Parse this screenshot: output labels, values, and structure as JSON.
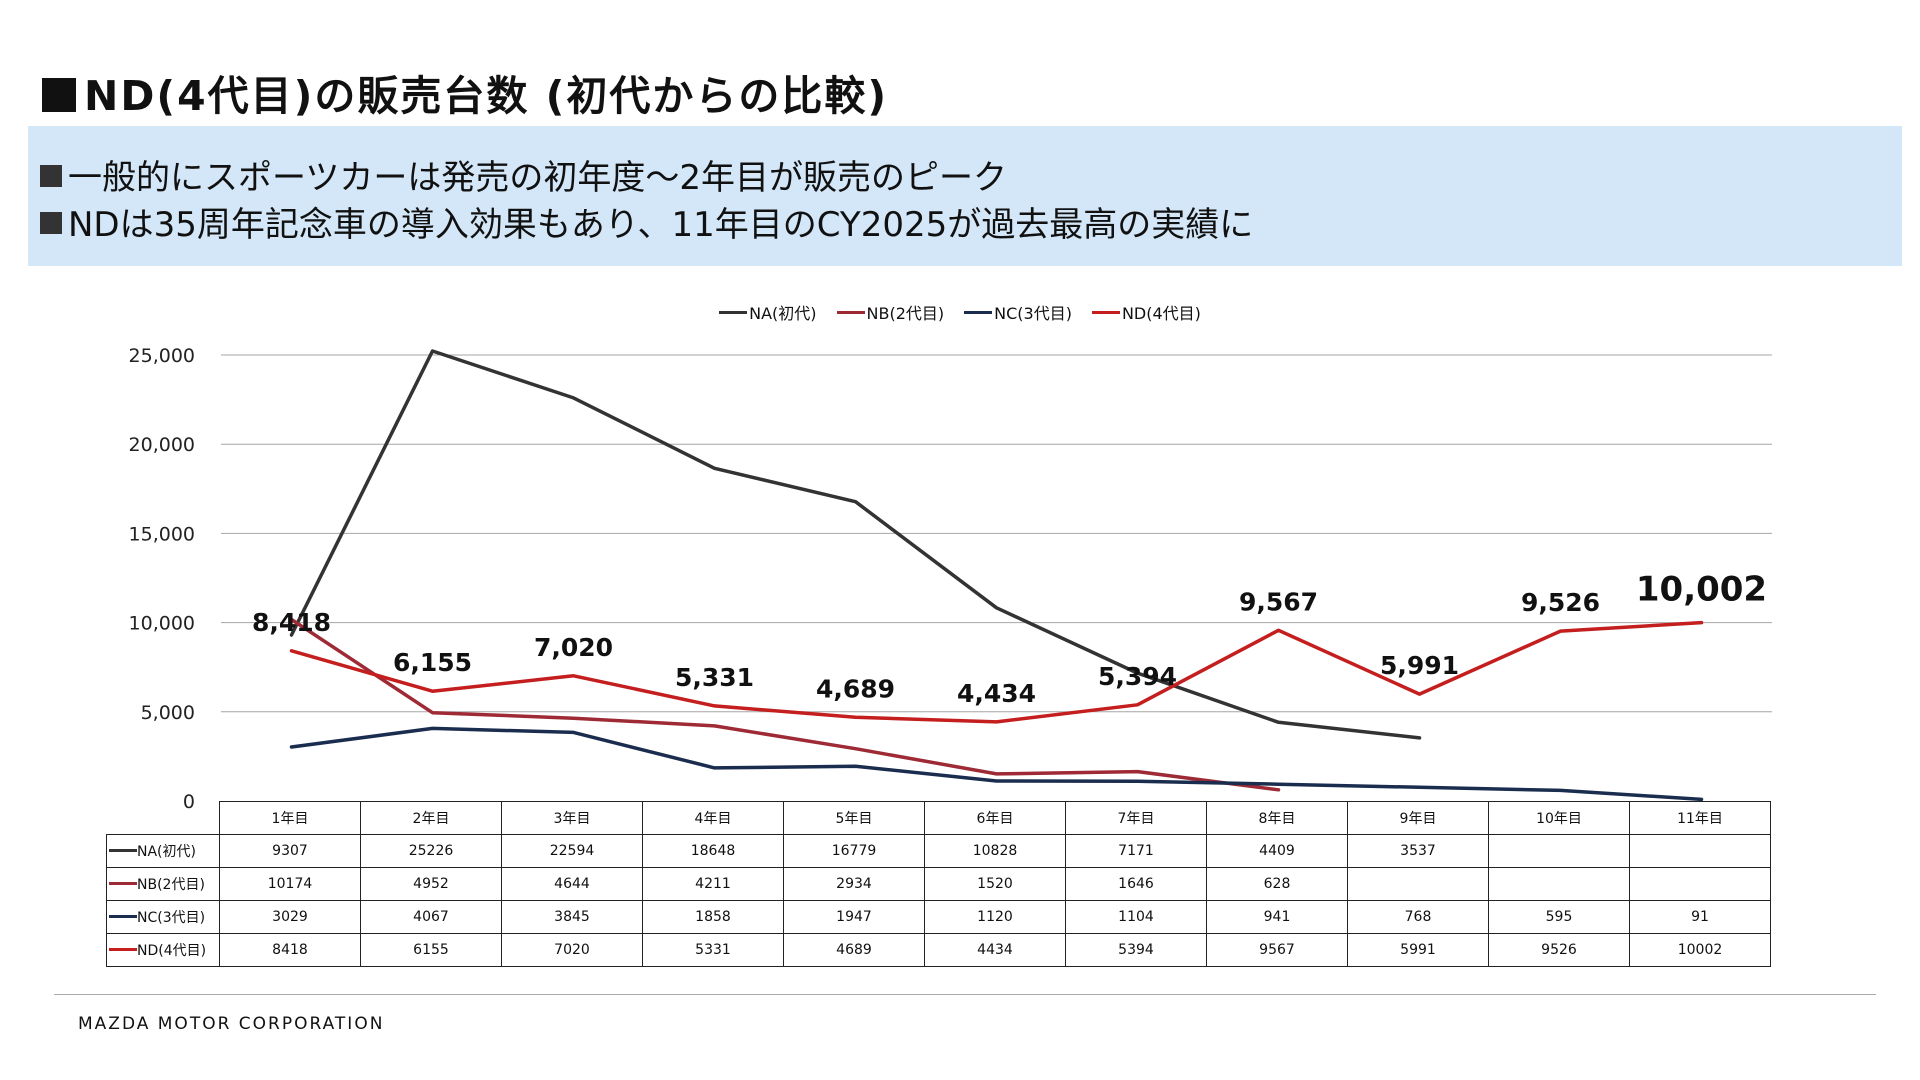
{
  "slide": {
    "title": "ND(4代目)の販売台数 (初代からの比較)",
    "bullets": [
      "一般的にスポーツカーは発売の初年度～2年目が販売のピーク",
      "NDは35周年記念車の導入効果もあり、11年目のCY2025が過去最高の実績に"
    ],
    "footer": "MAZDA MOTOR CORPORATION"
  },
  "chart_data": {
    "type": "line",
    "categories": [
      "1年目",
      "2年目",
      "3年目",
      "4年目",
      "5年目",
      "6年目",
      "7年目",
      "8年目",
      "9年目",
      "10年目",
      "11年目"
    ],
    "ylim": [
      0,
      25000
    ],
    "yticks": [
      0,
      5000,
      10000,
      15000,
      20000,
      25000
    ],
    "ytick_labels": [
      "0",
      "5,000",
      "10,000",
      "15,000",
      "20,000",
      "25,000"
    ],
    "grid": true,
    "legend_position": "top",
    "series": [
      {
        "name": "NA(初代)",
        "color": "#333333",
        "values": [
          9307,
          25226,
          22594,
          18648,
          16779,
          10828,
          7171,
          4409,
          3537,
          null,
          null
        ]
      },
      {
        "name": "NB(2代目)",
        "color": "#9e2a35",
        "values": [
          10174,
          4952,
          4644,
          4211,
          2934,
          1520,
          1646,
          628,
          null,
          null,
          null
        ]
      },
      {
        "name": "NC(3代目)",
        "color": "#1b2d4f",
        "values": [
          3029,
          4067,
          3845,
          1858,
          1947,
          1120,
          1104,
          941,
          768,
          595,
          91
        ]
      },
      {
        "name": "ND(4代目)",
        "color": "#c41e1e",
        "values": [
          8418,
          6155,
          7020,
          5331,
          4689,
          4434,
          5394,
          9567,
          5991,
          9526,
          10002
        ]
      }
    ],
    "data_labels": [
      "8,418",
      "6,155",
      "7,020",
      "5,331",
      "4,689",
      "4,434",
      "5,394",
      "9,567",
      "5,991",
      "9,526",
      "10,002"
    ]
  }
}
